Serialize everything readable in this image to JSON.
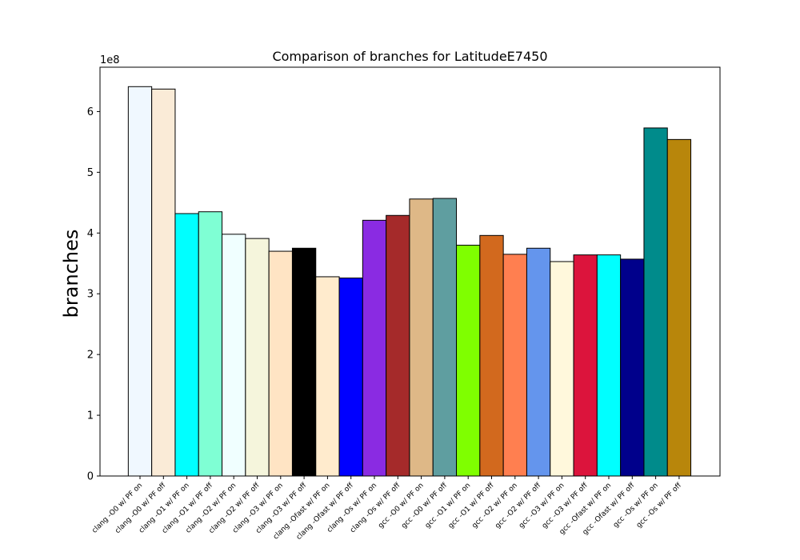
{
  "chart_data": {
    "type": "bar",
    "title": "Comparison of branches for LatitudeE7450",
    "xlabel": "",
    "ylabel": "branches",
    "y_scale_label": "1e8",
    "y_scale": 100000000,
    "ylim": [
      0,
      6.73
    ],
    "yticks": [
      0,
      1,
      2,
      3,
      4,
      5,
      6
    ],
    "ytick_labels": [
      "0",
      "1",
      "2",
      "3",
      "4",
      "5",
      "6"
    ],
    "grid": false,
    "legend": "none",
    "categories": [
      "clang -O0 w/ PF on",
      "clang -O0 w/ PF off",
      "clang -O1 w/ PF on",
      "clang -O1 w/ PF off",
      "clang -O2 w/ PF on",
      "clang -O2 w/ PF off",
      "clang -O3 w/ PF on",
      "clang -O3 w/ PF off",
      "clang -Ofast w/ PF on",
      "clang -Ofast w/ PF off",
      "clang -Os w/ PF on",
      "clang -Os w/ PF off",
      "gcc -O0 w/ PF on",
      "gcc -O0 w/ PF off",
      "gcc -O1 w/ PF on",
      "gcc -O1 w/ PF off",
      "gcc -O2 w/ PF on",
      "gcc -O2 w/ PF off",
      "gcc -O3 w/ PF on",
      "gcc -O3 w/ PF off",
      "gcc -Ofast w/ PF on",
      "gcc -Ofast w/ PF off",
      "gcc -Os w/ PF on",
      "gcc -Os w/ PF off"
    ],
    "values": [
      6.41,
      6.37,
      4.32,
      4.35,
      3.98,
      3.91,
      3.7,
      3.75,
      3.28,
      3.26,
      4.21,
      4.29,
      4.56,
      4.57,
      3.8,
      3.96,
      3.65,
      3.75,
      3.53,
      3.64,
      3.64,
      3.57,
      5.73,
      5.54
    ],
    "colors": [
      "#f0f8ff",
      "#faebd7",
      "#00ffff",
      "#7fffd4",
      "#f0ffff",
      "#f5f5dc",
      "#ffe4c4",
      "#000000",
      "#ffebcd",
      "#0000ff",
      "#8a2be2",
      "#a52a2a",
      "#deb887",
      "#5f9ea0",
      "#7fff00",
      "#d2691e",
      "#ff7f50",
      "#6495ed",
      "#fff8dc",
      "#dc143c",
      "#00ffff",
      "#00008b",
      "#008b8b",
      "#b8860b"
    ],
    "edge_color": "#000000"
  }
}
